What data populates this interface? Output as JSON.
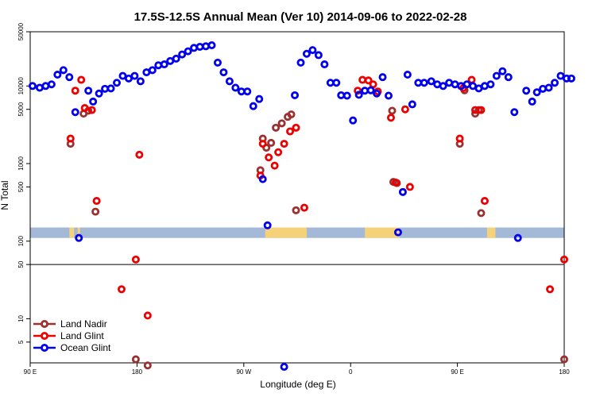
{
  "chart_data": {
    "type": "scatter",
    "title": "17.5S-12.5S Annual Mean (Ver 10)   2014-09-06 to 2022-02-28",
    "xlabel": "Longitude (deg E)",
    "ylabel": "N Total",
    "y_scale": "log",
    "ylim": [
      2.7,
      50000
    ],
    "x_axis_start": "90 E",
    "x_axis_span_deg": 360,
    "x_ticks": [
      {
        "offset": 0,
        "label": "90 E"
      },
      {
        "offset": 90,
        "label": "180"
      },
      {
        "offset": 180,
        "label": "90 W"
      },
      {
        "offset": 270,
        "label": "0"
      },
      {
        "offset": 360,
        "label": "90 E"
      },
      {
        "offset": 450,
        "label": "180"
      }
    ],
    "y_ticks": [
      {
        "value": 5,
        "label": "5"
      },
      {
        "value": 10,
        "label": "10"
      },
      {
        "value": 50,
        "label": "50"
      },
      {
        "value": 100,
        "label": "100"
      },
      {
        "value": 500,
        "label": "500"
      },
      {
        "value": 1000,
        "label": "1000"
      },
      {
        "value": 5000,
        "label": "5000"
      },
      {
        "value": 10000,
        "label": "10000"
      },
      {
        "value": 50000,
        "label": "50000"
      }
    ],
    "reference_line_y": 50,
    "land_band": {
      "y_low": 110,
      "y_high": 150,
      "ocean_color": "#a4b8d8",
      "land_color": "#f5d27a",
      "land_segments": [
        [
          33,
          37
        ],
        [
          40,
          42
        ],
        [
          198,
          233
        ],
        [
          282,
          311
        ],
        [
          385,
          392
        ]
      ]
    },
    "series": [
      {
        "name": "Land Nadir",
        "color": "#9b3030",
        "points": [
          [
            34,
            1800
          ],
          [
            45,
            4400
          ],
          [
            49,
            4800
          ],
          [
            55,
            240
          ],
          [
            89,
            3
          ],
          [
            99,
            2.5
          ],
          [
            194,
            820
          ],
          [
            196,
            2100
          ],
          [
            199,
            1600
          ],
          [
            203,
            1850
          ],
          [
            207,
            2900
          ],
          [
            212,
            3300
          ],
          [
            217,
            4000
          ],
          [
            220,
            4300
          ],
          [
            224,
            250
          ],
          [
            306,
            580
          ],
          [
            309,
            560
          ],
          [
            305,
            4800
          ],
          [
            362,
            1800
          ],
          [
            366,
            8800
          ],
          [
            375,
            4400
          ],
          [
            378,
            4900
          ],
          [
            380,
            230
          ],
          [
            450,
            3
          ]
        ]
      },
      {
        "name": "Land Glint",
        "color": "#ee0000",
        "points": [
          [
            34,
            2100
          ],
          [
            38,
            8700
          ],
          [
            43,
            12000
          ],
          [
            46,
            5200
          ],
          [
            52,
            4900
          ],
          [
            56,
            330
          ],
          [
            77,
            24
          ],
          [
            89,
            58
          ],
          [
            92,
            1300
          ],
          [
            99,
            11
          ],
          [
            194,
            700
          ],
          [
            196,
            1800
          ],
          [
            201,
            1200
          ],
          [
            206,
            940
          ],
          [
            209,
            1400
          ],
          [
            214,
            1800
          ],
          [
            219,
            2600
          ],
          [
            224,
            2900
          ],
          [
            231,
            270
          ],
          [
            276,
            8700
          ],
          [
            280,
            12000
          ],
          [
            285,
            11800
          ],
          [
            289,
            10500
          ],
          [
            293,
            8500
          ],
          [
            304,
            3900
          ],
          [
            308,
            570
          ],
          [
            316,
            5000
          ],
          [
            320,
            500
          ],
          [
            362,
            2100
          ],
          [
            365,
            9400
          ],
          [
            372,
            12000
          ],
          [
            375,
            4900
          ],
          [
            380,
            4900
          ],
          [
            383,
            330
          ],
          [
            438,
            24
          ],
          [
            450,
            58
          ]
        ]
      },
      {
        "name": "Ocean Glint",
        "color": "#0000ee",
        "points": [
          [
            2,
            10000
          ],
          [
            8,
            9500
          ],
          [
            13,
            10000
          ],
          [
            18,
            10500
          ],
          [
            23,
            14000
          ],
          [
            28,
            16000
          ],
          [
            33,
            13000
          ],
          [
            38,
            4600
          ],
          [
            41,
            110
          ],
          [
            49,
            8700
          ],
          [
            53,
            6300
          ],
          [
            58,
            8000
          ],
          [
            63,
            9200
          ],
          [
            68,
            9300
          ],
          [
            73,
            11000
          ],
          [
            78,
            13500
          ],
          [
            83,
            12500
          ],
          [
            88,
            13500
          ],
          [
            93,
            11500
          ],
          [
            98,
            15000
          ],
          [
            103,
            16000
          ],
          [
            108,
            18500
          ],
          [
            113,
            19000
          ],
          [
            118,
            21000
          ],
          [
            123,
            22500
          ],
          [
            128,
            25500
          ],
          [
            133,
            28000
          ],
          [
            138,
            31000
          ],
          [
            143,
            32000
          ],
          [
            148,
            32500
          ],
          [
            153,
            33500
          ],
          [
            158,
            20000
          ],
          [
            163,
            15000
          ],
          [
            168,
            11500
          ],
          [
            173,
            9500
          ],
          [
            178,
            8500
          ],
          [
            183,
            8500
          ],
          [
            188,
            5500
          ],
          [
            193,
            6800
          ],
          [
            196,
            630
          ],
          [
            200,
            160
          ],
          [
            214,
            2.4
          ],
          [
            223,
            7600
          ],
          [
            228,
            20000
          ],
          [
            233,
            26000
          ],
          [
            238,
            29000
          ],
          [
            243,
            25000
          ],
          [
            248,
            19000
          ],
          [
            253,
            11000
          ],
          [
            258,
            11000
          ],
          [
            262,
            7600
          ],
          [
            267,
            7500
          ],
          [
            272,
            3600
          ],
          [
            277,
            7700
          ],
          [
            282,
            8700
          ],
          [
            287,
            8800
          ],
          [
            292,
            8000
          ],
          [
            297,
            13000
          ],
          [
            302,
            7500
          ],
          [
            310,
            130
          ],
          [
            314,
            430
          ],
          [
            318,
            14000
          ],
          [
            322,
            5800
          ],
          [
            327,
            11000
          ],
          [
            332,
            11000
          ],
          [
            338,
            11500
          ],
          [
            343,
            10500
          ],
          [
            348,
            10000
          ],
          [
            353,
            11000
          ],
          [
            358,
            10500
          ],
          [
            363,
            10000
          ],
          [
            368,
            10500
          ],
          [
            373,
            10000
          ],
          [
            378,
            9300
          ],
          [
            383,
            10000
          ],
          [
            388,
            10500
          ],
          [
            393,
            13500
          ],
          [
            398,
            15500
          ],
          [
            403,
            13000
          ],
          [
            408,
            4600
          ],
          [
            411,
            110
          ],
          [
            418,
            8700
          ],
          [
            423,
            6300
          ],
          [
            427,
            8300
          ],
          [
            432,
            9200
          ],
          [
            437,
            9500
          ],
          [
            442,
            11000
          ],
          [
            447,
            13500
          ],
          [
            452,
            12500
          ],
          [
            456,
            12500
          ]
        ]
      }
    ],
    "legend": {
      "position": "bottom-left",
      "entries": [
        "Land Nadir",
        "Land Glint",
        "Ocean Glint"
      ]
    },
    "grid": false
  }
}
